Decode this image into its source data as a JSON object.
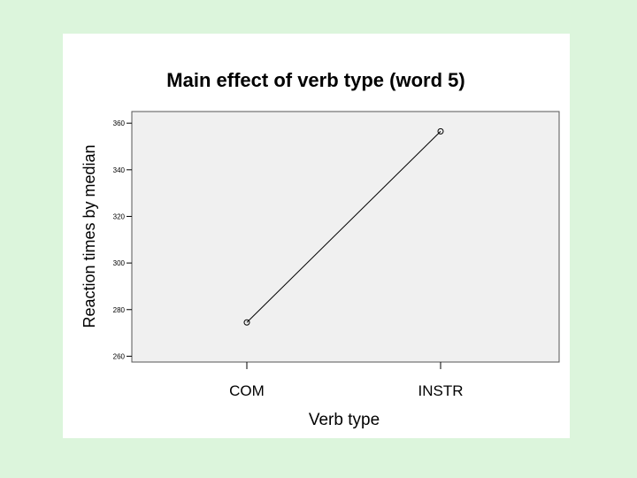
{
  "page": {
    "background_color": "#dcf5dc",
    "panel_color": "#ffffff",
    "plot_background_color": "#f0f0f0"
  },
  "chart_data": {
    "type": "line",
    "title": "Main effect of verb type (word 5)",
    "xlabel": "Verb type",
    "ylabel": "Reaction times by median",
    "categories": [
      "COM",
      "INSTR"
    ],
    "series": [
      {
        "values": [
          274.5,
          356.5
        ],
        "color": "#000000",
        "marker": "open-circle"
      }
    ],
    "ylim": [
      257.5,
      365
    ],
    "yticks": [
      260,
      280,
      300,
      320,
      340,
      360
    ],
    "ytick_labels": [
      "260",
      "280",
      "300",
      "320",
      "340",
      "360"
    ],
    "grid": false,
    "legend": "none"
  }
}
